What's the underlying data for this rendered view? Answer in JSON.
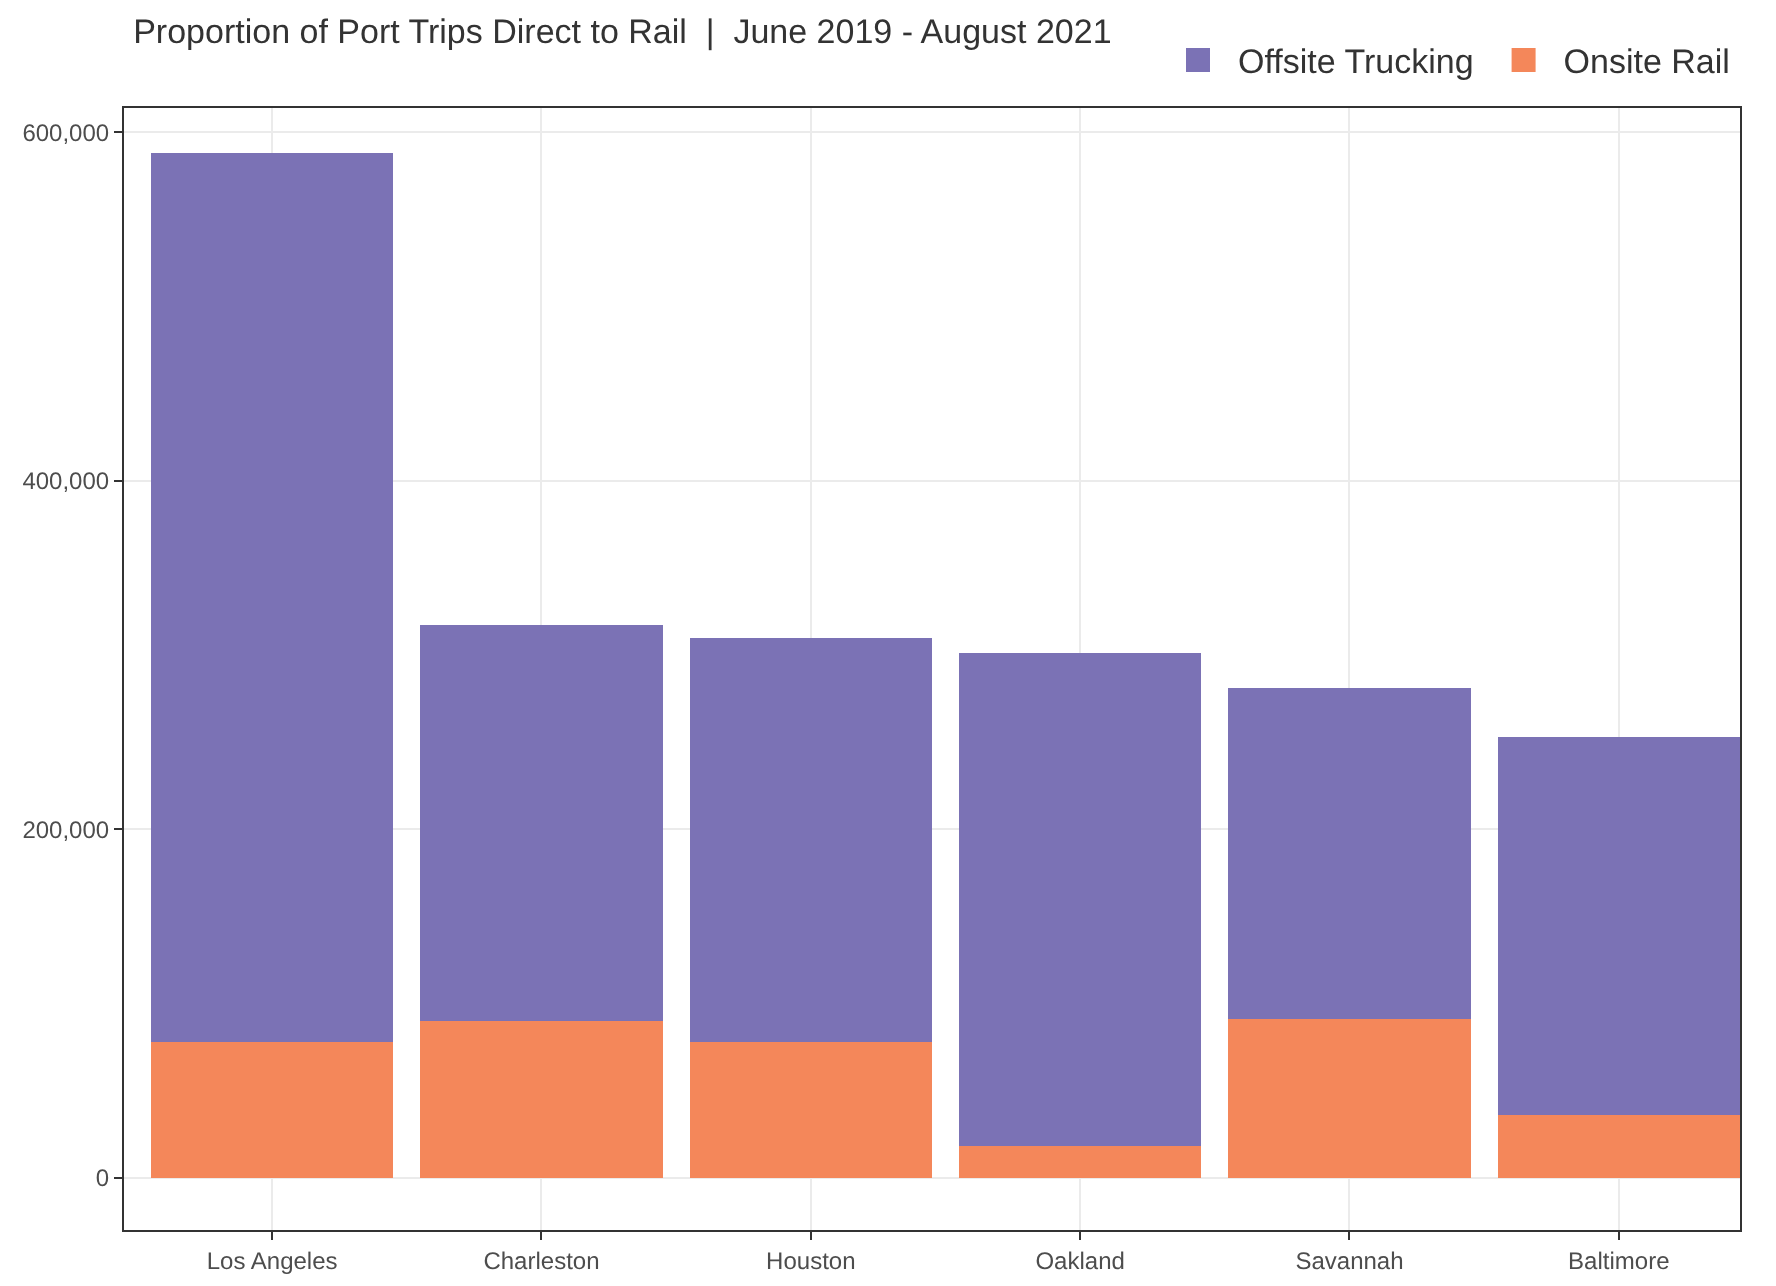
{
  "chart_data": {
    "type": "bar",
    "title": "Proportion of Port Trips Direct to Rail  |  June 2019 - August 2021",
    "categories": [
      "Los Angeles",
      "Charleston",
      "Houston",
      "Oakland",
      "Savannah",
      "Baltimore"
    ],
    "stacked": true,
    "series": [
      {
        "name": "Onsite Rail",
        "color": "#f4875a",
        "values": [
          78000,
          90000,
          78000,
          18000,
          91000,
          36000
        ]
      },
      {
        "name": "Offsite Trucking",
        "color": "#7b72b5",
        "values": [
          510000,
          227000,
          232000,
          283000,
          190000,
          217000
        ]
      }
    ],
    "ylim": [
      -30000,
      614000
    ],
    "yticks": [
      {
        "value": 0,
        "label": "0"
      },
      {
        "value": 200000,
        "label": "200,000"
      },
      {
        "value": 400000,
        "label": "400,000"
      },
      {
        "value": 600000,
        "label": "600,000"
      }
    ],
    "grid": true,
    "legend": "top right"
  }
}
